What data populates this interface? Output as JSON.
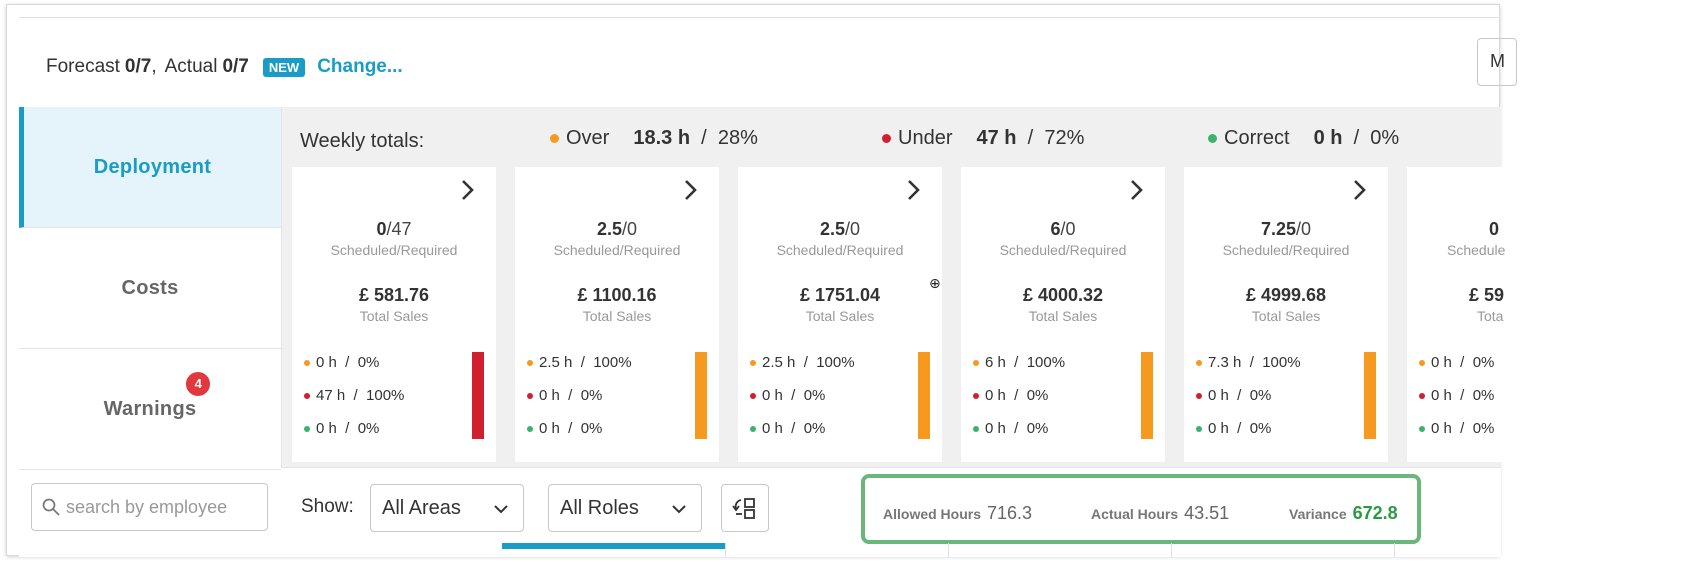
{
  "header": {
    "forecast_label": "Forecast",
    "forecast_value": "0/7",
    "actual_label": "Actual",
    "actual_value": "0/7",
    "new_badge": "NEW",
    "change_link": "Change...",
    "right_input_value": "M"
  },
  "sidebar": {
    "tabs": [
      {
        "label": "Deployment",
        "active": true
      },
      {
        "label": "Costs",
        "active": false
      },
      {
        "label": "Warnings",
        "active": false,
        "badge": "4"
      }
    ]
  },
  "search": {
    "placeholder": "search by employee"
  },
  "weekly": {
    "label": "Weekly totals:",
    "over": {
      "label": "Over",
      "hours": "18.3 h",
      "pct": "28%"
    },
    "under": {
      "label": "Under",
      "hours": "47 h",
      "pct": "72%"
    },
    "correct": {
      "label": "Correct",
      "hours": "0 h",
      "pct": "0%"
    },
    "sep": "/"
  },
  "card_labels": {
    "ratio": "Scheduled/Required",
    "sales": "Total Sales"
  },
  "cards": [
    {
      "scheduled": "0",
      "required": "/47",
      "sales": "£ 581.76",
      "over": "0 h  /  0%",
      "under": "47 h  /  100%",
      "correct": "0 h  /  0%",
      "bar": "under"
    },
    {
      "scheduled": "2.5",
      "required": "/0",
      "sales": "£ 1100.16",
      "over": "2.5 h  /  100%",
      "under": "0 h  /  0%",
      "correct": "0 h  /  0%",
      "bar": "over"
    },
    {
      "scheduled": "2.5",
      "required": "/0",
      "sales": "£ 1751.04",
      "over": "2.5 h  /  100%",
      "under": "0 h  /  0%",
      "correct": "0 h  /  0%",
      "bar": "over"
    },
    {
      "scheduled": "6",
      "required": "/0",
      "sales": "£ 4000.32",
      "over": "6 h  /  100%",
      "under": "0 h  /  0%",
      "correct": "0 h  /  0%",
      "bar": "over"
    },
    {
      "scheduled": "7.25",
      "required": "/0",
      "sales": "£ 4999.68",
      "over": "7.3 h  /  100%",
      "under": "0 h  /  0%",
      "correct": "0 h  /  0%",
      "bar": "over"
    },
    {
      "scheduled": "0",
      "required": "",
      "sales": "£ 59",
      "ratio_label": "Schedule",
      "sales_label": "Tota",
      "over": "0 h  /  0%",
      "under": "0 h  /  0%",
      "correct": "0 h  /  0%",
      "bar": "none"
    }
  ],
  "filters": {
    "show_label": "Show:",
    "areas": "All Areas",
    "roles": "All Roles"
  },
  "hours": {
    "allowed_label": "Allowed Hours",
    "allowed_value": "716.3",
    "actual_label": "Actual Hours",
    "actual_value": "43.51",
    "variance_label": "Variance",
    "variance_value": "672.8"
  },
  "colors": {
    "accent": "#1a9dc4",
    "over": "#f59a1f",
    "under": "#d0202f",
    "correct": "#3bb36a",
    "variance": "#2a9a42",
    "highlight_border": "#6bb67a",
    "badge": "#e0383e"
  }
}
